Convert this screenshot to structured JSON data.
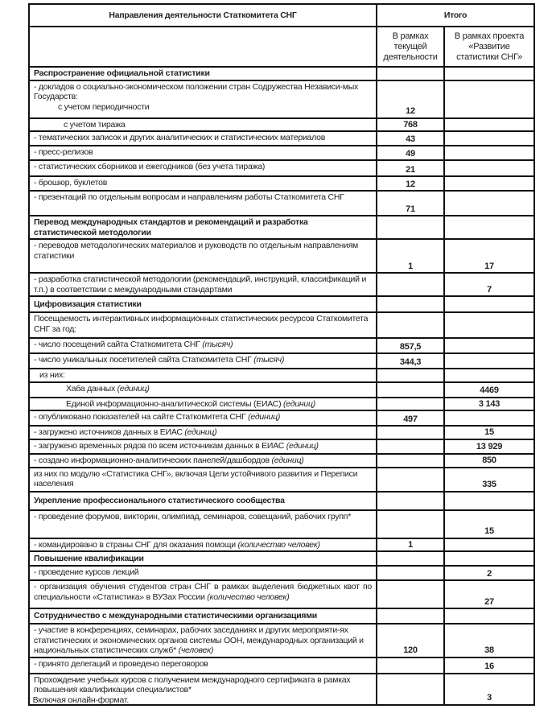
{
  "header": {
    "col_direction": "Направления деятельности Статкомитета СНГ",
    "col_total": "Итого",
    "col_current": "В рамках текущей деятельности",
    "col_project": "В рамках проекта «Развитие статистики СНГ»"
  },
  "rows": [
    {
      "type": "section",
      "label": "Распространение официальной статистики",
      "v1": "",
      "v2": ""
    },
    {
      "label": "- докладов о социально-экономическом положении стран Содружества Независи-мых Государств:",
      "sub": "с учетом периодичности",
      "v1": "12",
      "v2": ""
    },
    {
      "label": "с учетом тиража",
      "indent": 2,
      "v1": "768",
      "v2": ""
    },
    {
      "label": "- тематических записок и других аналитических и статистических материалов",
      "v1": "43",
      "v2": ""
    },
    {
      "label": "- пресс-релизов",
      "v1": "49",
      "v2": ""
    },
    {
      "label": "- статистических сборников и ежегодников (без учета тиража)",
      "v1": "21",
      "v2": ""
    },
    {
      "label": "- брошюр, буклетов",
      "v1": "12",
      "v2": ""
    },
    {
      "label": "- презентаций по отдельным вопросам и направлениям работы Статкомитета СНГ",
      "v1": "71",
      "v2": ""
    },
    {
      "type": "section",
      "label": "Перевод международных стандартов и рекомендаций и разработка статистической методологии",
      "v1": "",
      "v2": ""
    },
    {
      "label": "- переводов методологических материалов и руководств по отдельным направлениям  статистики",
      "v1": "1",
      "v2": "17"
    },
    {
      "label": "- разработка статистической методологии (рекомендаций, инструкций, классификаций и т.п.) в соответствии  с международными стандартами",
      "v1": "",
      "v2": "7"
    },
    {
      "type": "section",
      "label": "Цифровизация статистики",
      "v1": "",
      "v2": ""
    },
    {
      "label": "Посещаемость интерактивных информационных статистических ресурсов Статкомитета СНГ за год:",
      "v1": "",
      "v2": ""
    },
    {
      "label": "- число посещений сайта Статкомитета СНГ",
      "unit": "(тысяч)",
      "v1": "857,5",
      "v2": ""
    },
    {
      "label": "- число уникальных посетителей сайта Статкомитета СНГ",
      "unit": "(тысяч)",
      "v1": "344,3",
      "v2": ""
    },
    {
      "label": "из них:",
      "indent": 1,
      "v1": "",
      "v2": ""
    },
    {
      "label": "Хаба данных",
      "unit": "(единиц)",
      "indent": 3,
      "v1": "",
      "v2": "4469"
    },
    {
      "label": "Единой информационно-аналитической системы (ЕИАС)",
      "unit": "(единиц)",
      "indent": 3,
      "v1": "",
      "v2": "3 143"
    },
    {
      "label": "- опубликовано показателей на сайте Статкомитета СНГ",
      "unit": "(единиц)",
      "v1": "497",
      "v2": ""
    },
    {
      "label": "- загружено источников данных в ЕИАС",
      "unit": "(единиц)",
      "v1": "",
      "v2": "15"
    },
    {
      "label": "- загружено временных рядов по всем источникам данных в ЕИАС",
      "unit": "(единиц)",
      "v1": "",
      "v2": "13 929"
    },
    {
      "label": " - создано информационно-аналитических панелей/дашбордов",
      "unit": "(единиц)",
      "v1": "",
      "v2": "850"
    },
    {
      "label": "из них по модулю «Статистика СНГ», включая Цели устойчивого развития и Переписи населения",
      "v1": "",
      "v2": "335"
    },
    {
      "type": "section",
      "label": "Укрепление профессионального статистического сообщества",
      "v1": "",
      "v2": ""
    },
    {
      "label": "- проведение форумов, викторин, олимпиад, семинаров, совещаний, рабочих групп*",
      "v1": "",
      "v2": "15"
    },
    {
      "label": "- командировано в страны СНГ для оказания помощи",
      "unit": "(количество  человек)",
      "v1": "1",
      "v2": ""
    },
    {
      "type": "section",
      "label": "Повышение квалификации",
      "v1": "",
      "v2": ""
    },
    {
      "label": "- проведение курсов лекций",
      "v1": "",
      "v2": "2"
    },
    {
      "label": "- организация обучения студентов стран СНГ в рамках выделения бюджетных квот по специальности   «Статистика» в ВУЗах России",
      "unit": "(количество  человек)",
      "just": true,
      "v1": "",
      "v2": "27"
    },
    {
      "type": "section",
      "label": "Сотрудничество с международными статистическими организациями",
      "v1": "",
      "v2": ""
    },
    {
      "label": "- участие в конференциях, семинарах, рабочих заседаниях и других мероприяти-ях статистических и экономических органов системы ООН,  международных организаций и национальных статистических служб*",
      "unit": "(человек)",
      "v1": "120",
      "v2": "38"
    },
    {
      "label": "- принято делегаций и проведено переговоров",
      "v1": "",
      "v2": "16"
    },
    {
      "label": "Прохождение учебных курсов с получением международного сертификата в рамках повышения квалификации специалистов*",
      "v1": "",
      "v2": "3"
    }
  ],
  "footnote": "* Включая онлайн-формат."
}
